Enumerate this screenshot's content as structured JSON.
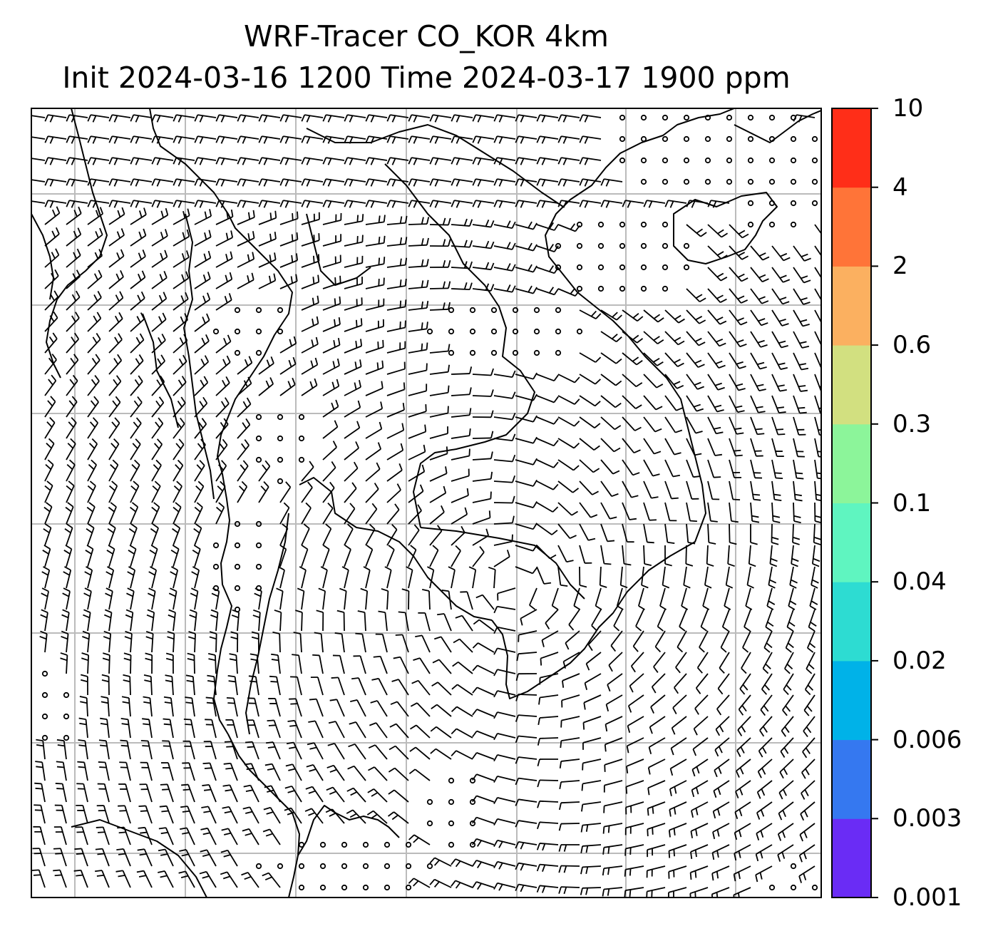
{
  "title": {
    "line1": "WRF-Tracer CO_KOR 4km",
    "line2": "Init 2024-03-16 1200 Time 2024-03-17 1900 ppm"
  },
  "colorbar": {
    "levels": [
      "0.001",
      "0.003",
      "0.006",
      "0.02",
      "0.04",
      "0.1",
      "0.3",
      "0.6",
      "2",
      "4",
      "10"
    ],
    "colors": [
      "#6a2cf5",
      "#3578f0",
      "#00b2e8",
      "#2ddcd2",
      "#5ff5c0",
      "#8cf59a",
      "#d2e080",
      "#fbb060",
      "#ff7438",
      "#ff2e18"
    ]
  },
  "map": {
    "grid": "on",
    "barbs": "wind barbs",
    "calm_marker": "circle",
    "coastline_color": "#000000",
    "grid_color": "#bbbbbb"
  }
}
